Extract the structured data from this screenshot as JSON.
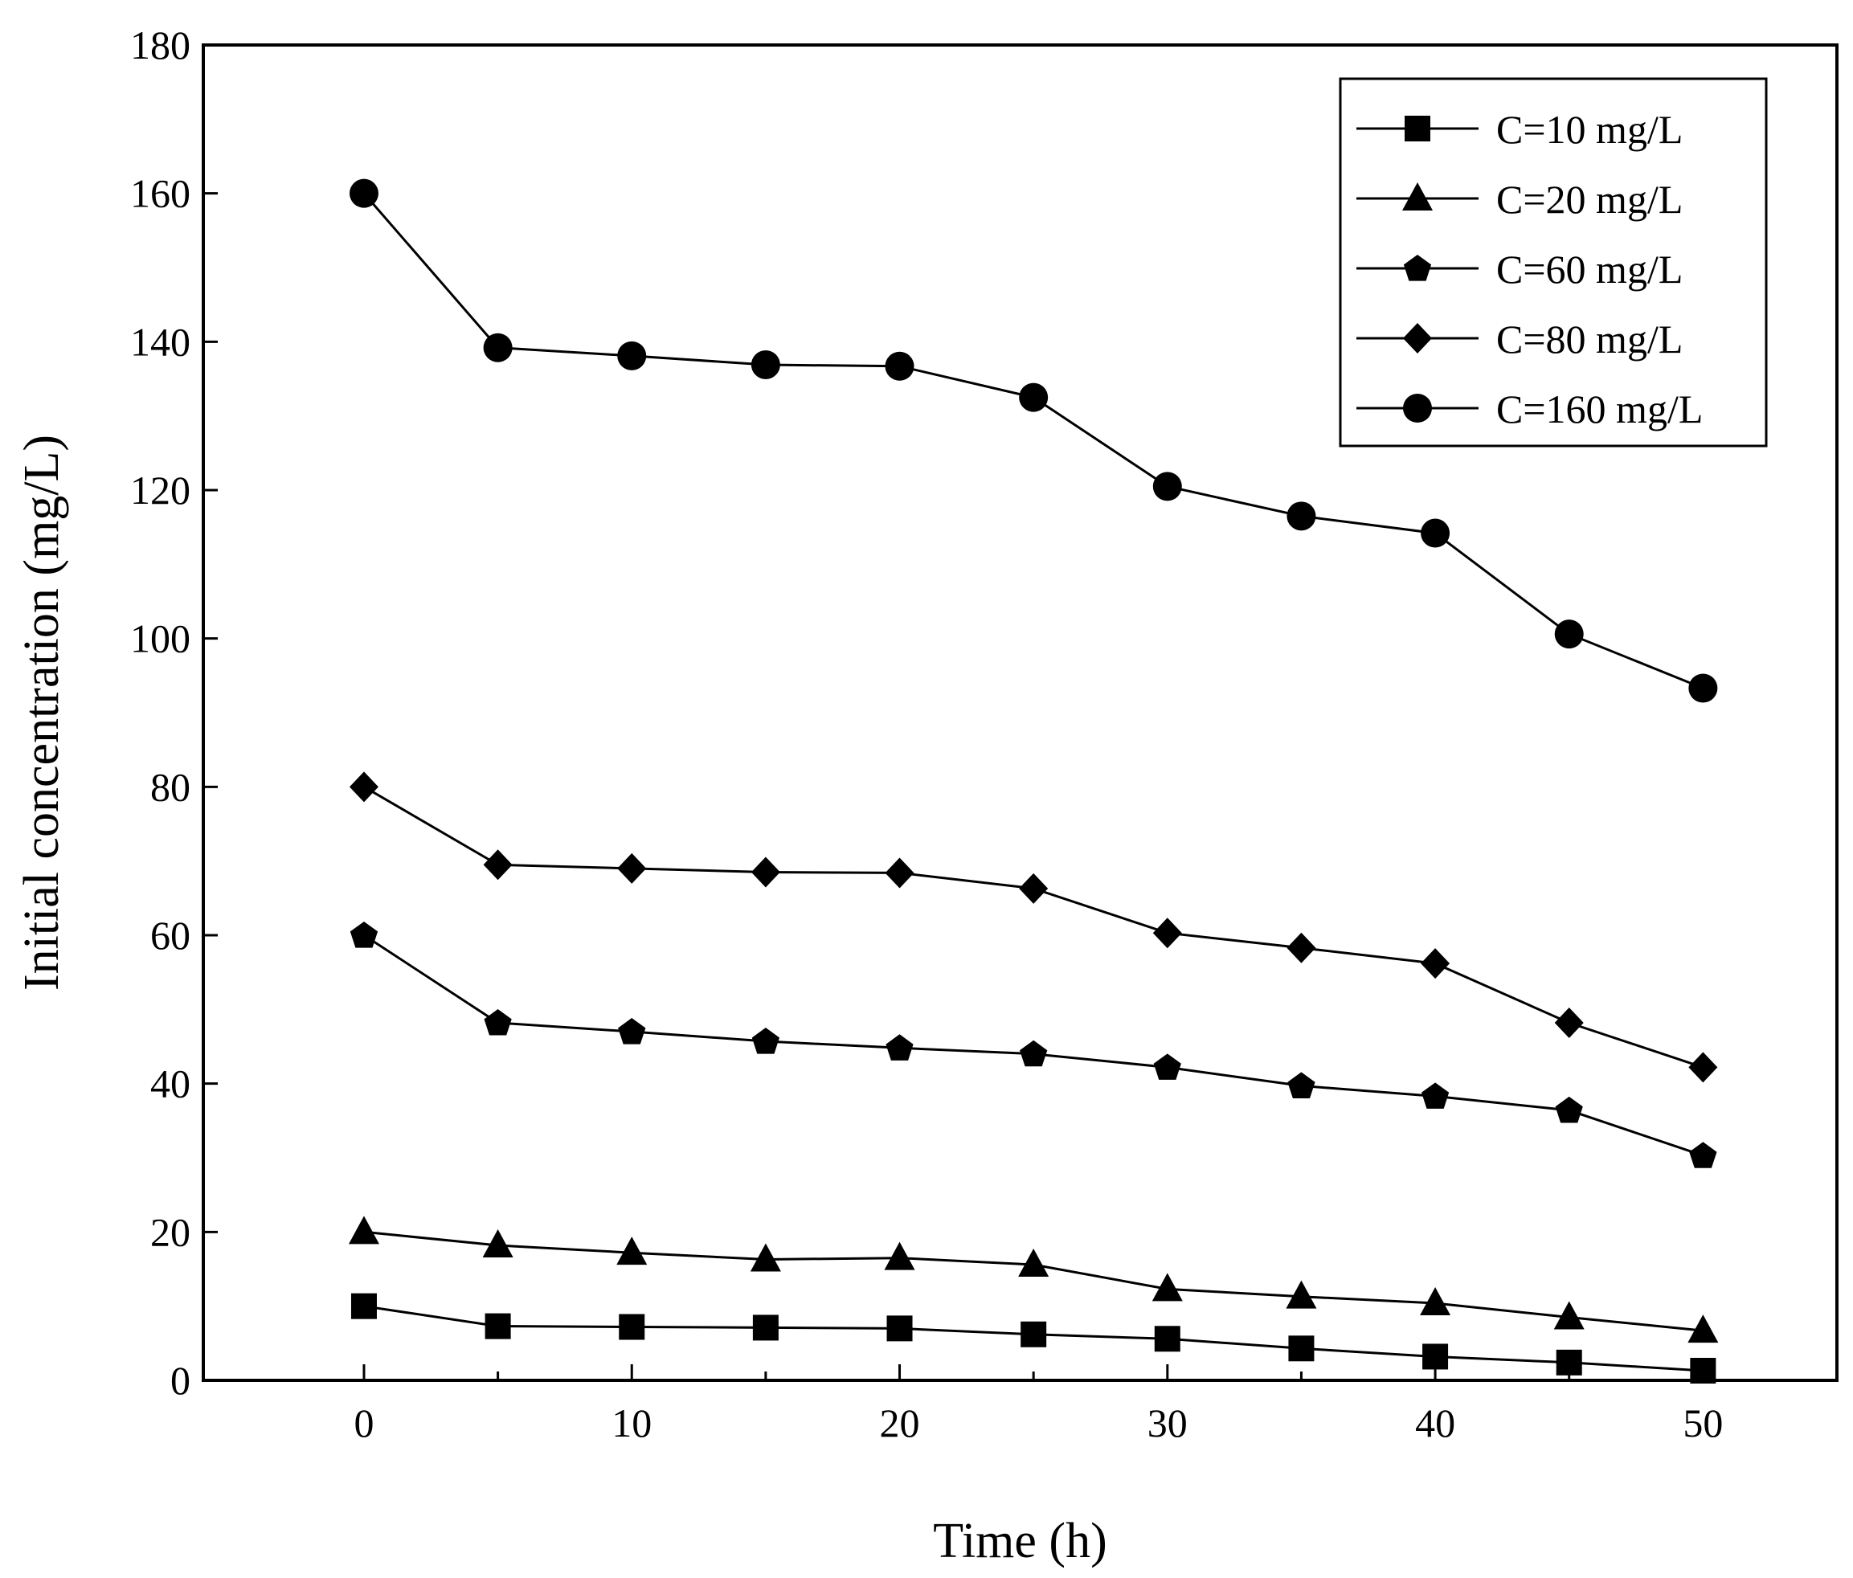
{
  "chart_data": {
    "type": "line",
    "xlabel": "Time (h)",
    "ylabel": "Initial concentration (mg/L)",
    "xlim": [
      -6,
      55
    ],
    "ylim": [
      0,
      180
    ],
    "x_ticks": [
      0,
      10,
      20,
      30,
      40,
      50
    ],
    "y_ticks": [
      0,
      20,
      40,
      60,
      80,
      100,
      120,
      140,
      160,
      180
    ],
    "x_minor_ticks": [
      5,
      15,
      25,
      35,
      45
    ],
    "grid": false,
    "legend_position": "top-right",
    "line_color": "#000000",
    "marker_color": "#000000",
    "x": [
      0,
      5,
      10,
      15,
      20,
      25,
      30,
      35,
      40,
      45,
      50
    ],
    "series": [
      {
        "name": "C=10 mg/L",
        "marker": "square",
        "values": [
          10,
          7.3,
          7.2,
          7.1,
          7.0,
          6.2,
          5.6,
          4.3,
          3.2,
          2.4,
          1.3
        ]
      },
      {
        "name": "C=20 mg/L",
        "marker": "triangle",
        "values": [
          20,
          18.2,
          17.2,
          16.3,
          16.5,
          15.6,
          12.3,
          11.3,
          10.4,
          8.5,
          6.7
        ]
      },
      {
        "name": "C=60 mg/L",
        "marker": "pentagon",
        "values": [
          60,
          48.2,
          47.0,
          45.7,
          44.8,
          44.0,
          42.2,
          39.7,
          38.3,
          36.4,
          30.3
        ]
      },
      {
        "name": "C=80 mg/L",
        "marker": "diamond",
        "values": [
          80,
          69.5,
          69.0,
          68.5,
          68.4,
          66.3,
          60.3,
          58.3,
          56.2,
          48.2,
          42.2
        ]
      },
      {
        "name": "C=160 mg/L",
        "marker": "circle",
        "values": [
          160,
          139.2,
          138.1,
          136.9,
          136.7,
          132.5,
          120.5,
          116.5,
          114.2,
          100.6,
          93.3
        ]
      }
    ]
  }
}
